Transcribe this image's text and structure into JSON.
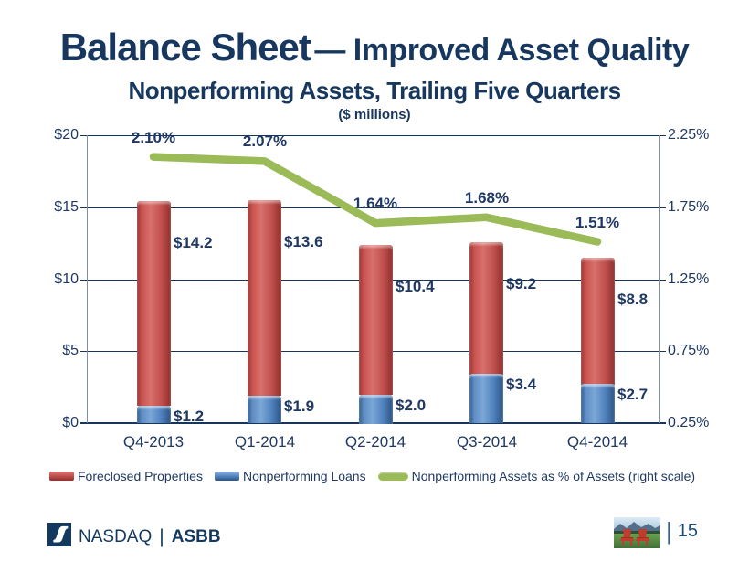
{
  "slide": {
    "title_main": "Balance Sheet",
    "title_secondary": "— Improved Asset Quality",
    "subtitle": "Nonperforming Assets, Trailing Five Quarters"
  },
  "chart_data": {
    "type": "combo: stacked bar + line",
    "title": "($ millions)",
    "categories": [
      "Q4-2013",
      "Q1-2014",
      "Q2-2014",
      "Q3-2014",
      "Q4-2014"
    ],
    "series": [
      {
        "name": "Foreclosed Properties",
        "type": "bar",
        "axis": "left",
        "stack_order": "top",
        "color": "#BE4B48",
        "values": [
          14.2,
          13.6,
          10.4,
          9.2,
          8.8
        ],
        "value_labels": [
          "$14.2",
          "$13.6",
          "$10.4",
          "$9.2",
          "$8.8"
        ]
      },
      {
        "name": "Nonperforming Loans",
        "type": "bar",
        "axis": "left",
        "stack_order": "bottom",
        "color": "#4F81BD",
        "values": [
          1.2,
          1.9,
          2.0,
          3.4,
          2.7
        ],
        "value_labels": [
          "$1.2",
          "$1.9",
          "$2.0",
          "$3.4",
          "$2.7"
        ]
      },
      {
        "name": "Nonperforming Assets as % of Assets (right scale)",
        "type": "line",
        "axis": "right",
        "color": "#9BBB59",
        "values": [
          2.1,
          2.07,
          1.64,
          1.68,
          1.51
        ],
        "value_labels": [
          "2.10%",
          "2.07%",
          "1.64%",
          "1.68%",
          "1.51%"
        ]
      }
    ],
    "left_axis": {
      "min": 0,
      "max": 20,
      "tick_labels": [
        "$0",
        "$5",
        "$10",
        "$15",
        "$20"
      ]
    },
    "right_axis": {
      "min": 0.25,
      "max": 2.25,
      "tick_labels": [
        "0.25%",
        "0.75%",
        "1.25%",
        "1.75%",
        "2.25%"
      ]
    },
    "grid": true,
    "legend_position": "bottom"
  },
  "footer": {
    "brand": "NASDAQ",
    "divider": "|",
    "ticker": "ASBB",
    "page_divider": "|",
    "page_number": "15"
  }
}
